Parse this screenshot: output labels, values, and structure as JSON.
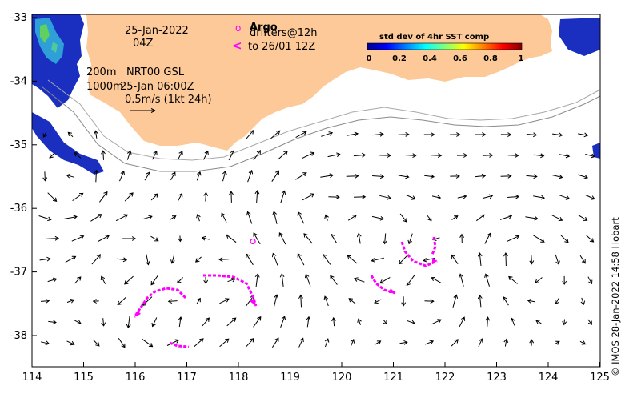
{
  "map": {
    "date": "25-Jan-2022",
    "hour": "04Z",
    "legend_depth_200": "200m",
    "legend_depth_1000": "1000m",
    "current_product": "NRT00 GSL",
    "current_time": "25-Jan 06:00Z",
    "scale_label": "0.5m/s (1kt 24h)",
    "argo_label": "Argo",
    "drifters_label": "drifters@12h",
    "drifters_to_label": "to 26/01 12Z",
    "argo_symbol": "o",
    "drifter_symbol": "<",
    "colorbar": {
      "title": "std dev of 4hr SST comp",
      "ticks": [
        "0",
        "0.2",
        "0.4",
        "0.6",
        "0.8",
        "1"
      ]
    },
    "x_ticks": [
      "114",
      "115",
      "116",
      "117",
      "118",
      "119",
      "120",
      "121",
      "122",
      "123",
      "124",
      "125"
    ],
    "y_ticks": [
      "-33",
      "-34",
      "-35",
      "-36",
      "-37",
      "-38"
    ],
    "credit": "© IMOS 28-Jan-2022 14:58 Hobart",
    "colors": {
      "land": "#fdc998",
      "drifter": "#ff00ff",
      "argo": "#ff00ff",
      "isobath": "#a0a0a0",
      "sst_high": "#1a1ab0"
    },
    "argo_float": {
      "lon": 118.28,
      "lat": -36.52
    }
  }
}
